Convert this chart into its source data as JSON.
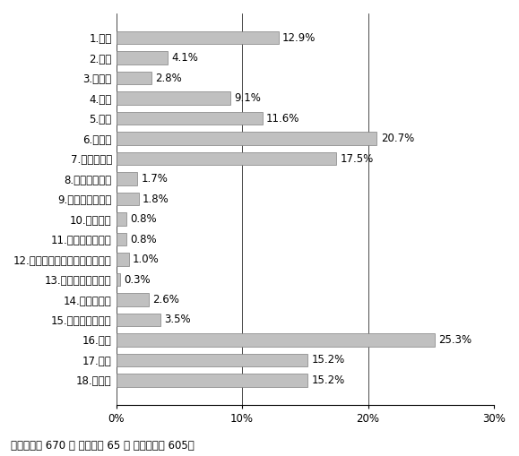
{
  "categories": [
    "1.住宅",
    "2.店舗",
    "3.事務所",
    "4.工場",
    "5.倉庫",
    "6.駐車場",
    "7.資材置き場",
    "8.公園・広場等",
    "9.学校・文化施設",
    "10.娯楽施設",
    "11.病院・医療施設",
    "12.高齢者・障害者等の福祉施設",
    "13.市場等の流通施設",
    "14.墓地・霊図",
    "15.廃棄物処理施設",
    "16.農地",
    "17.山林",
    "18.その他"
  ],
  "values": [
    12.9,
    4.1,
    2.8,
    9.1,
    11.6,
    20.7,
    17.5,
    1.7,
    1.8,
    0.8,
    0.8,
    1.0,
    0.3,
    2.6,
    3.5,
    25.3,
    15.2,
    15.2
  ],
  "labels": [
    "12.9%",
    "4.1%",
    "2.8%",
    "9.1%",
    "11.6%",
    "20.7%",
    "17.5%",
    "1.7%",
    "1.8%",
    "0.8%",
    "0.8%",
    "1.0%",
    "0.3%",
    "2.6%",
    "3.5%",
    "25.3%",
    "15.2%",
    "15.2%"
  ],
  "bar_color": "#c0c0c0",
  "bar_edge_color": "#808080",
  "xlim": [
    0,
    30
  ],
  "xticks": [
    0,
    10,
    20,
    30
  ],
  "xticklabels": [
    "0%",
    "10%",
    "20%",
    "30%"
  ],
  "footer": "》対象者数 670 ／ 不明者数 65 ／ 有効回答数 605《",
  "footer2": "【対象者数 670 ／ 不明者数 65 ／ 有効回答数 605】",
  "background_color": "#ffffff",
  "bar_height": 0.65,
  "label_fontsize": 8.5,
  "tick_fontsize": 8.5,
  "footer_fontsize": 8.5
}
